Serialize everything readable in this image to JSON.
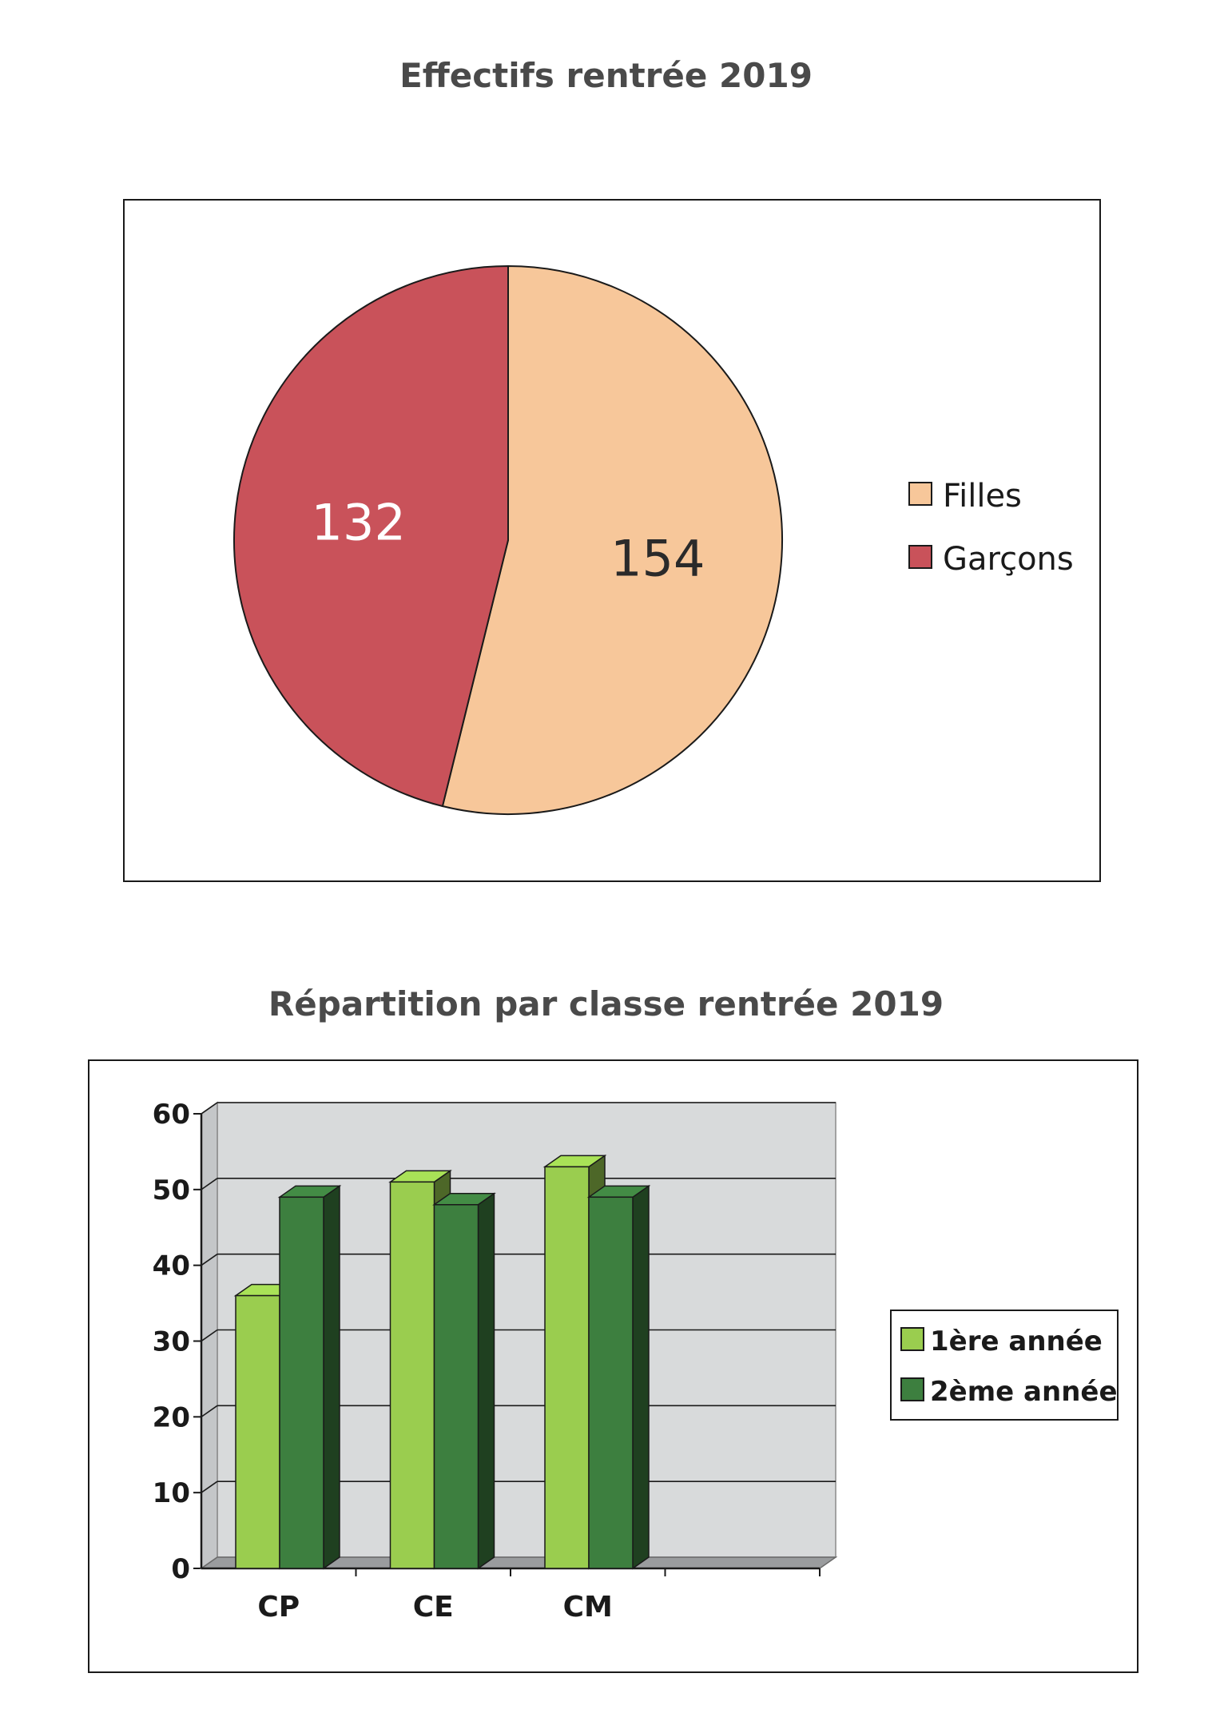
{
  "chart_data": [
    {
      "type": "pie",
      "title": "Effectifs rentrée 2019",
      "slices": [
        {
          "label": "Filles",
          "value": 154,
          "color": "#f7c79a",
          "text_color": "#2a2a2a"
        },
        {
          "label": "Garçons",
          "value": 132,
          "color": "#c9525a",
          "text_color": "#ffffff"
        }
      ],
      "legend_position": "right"
    },
    {
      "type": "bar",
      "title": "Répartition par classe rentrée 2019",
      "categories": [
        "CP",
        "CE",
        "CM"
      ],
      "series": [
        {
          "name": "1ère année",
          "values": [
            36,
            51,
            53
          ],
          "color": "#9acd4f"
        },
        {
          "name": "2ème année",
          "values": [
            49,
            48,
            49
          ],
          "color": "#3d7f3f"
        }
      ],
      "y_ticks": [
        "0",
        "10",
        "20",
        "30",
        "40",
        "50",
        "60"
      ],
      "ylim": [
        0,
        60
      ],
      "grid": true,
      "legend_position": "right"
    }
  ]
}
